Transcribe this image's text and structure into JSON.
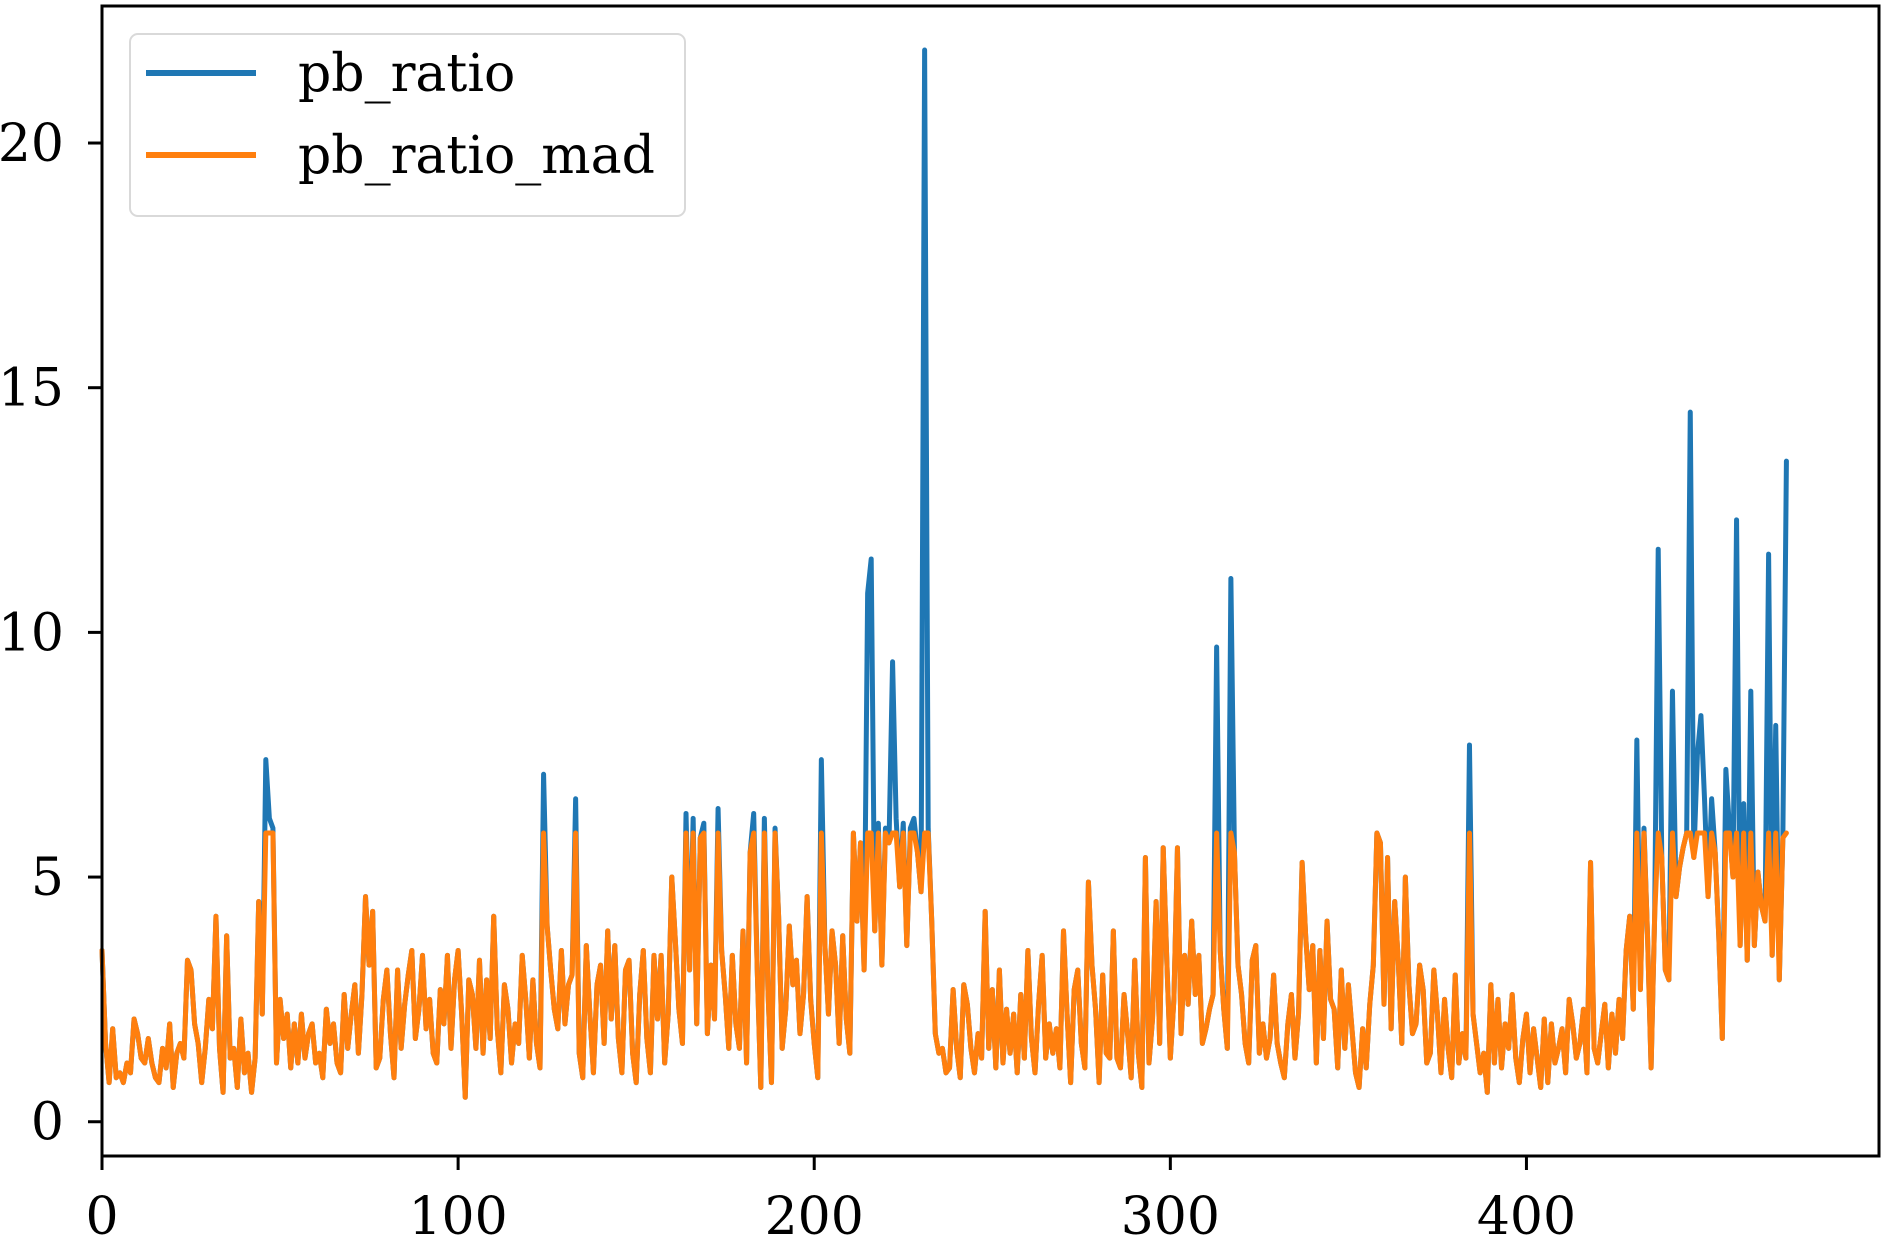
{
  "chart_data": {
    "type": "line",
    "xlim": [
      0,
      499
    ],
    "ylim": [
      -0.7,
      22.8
    ],
    "x_ticks": [
      0,
      100,
      200,
      300,
      400
    ],
    "x_tick_labels": [
      "0",
      "100",
      "200",
      "300",
      "400"
    ],
    "y_ticks": [
      0,
      5,
      10,
      15,
      20
    ],
    "y_tick_labels": [
      "0",
      "5",
      "10",
      "15",
      "20"
    ],
    "grid": false,
    "legend": {
      "position": "upper-left",
      "entries": [
        "pb_ratio",
        "pb_ratio_mad"
      ]
    },
    "mad_cap": 5.9,
    "series": [
      {
        "name": "pb_ratio",
        "color": "#1f77b4",
        "values": [
          3.5,
          1.6,
          0.8,
          1.9,
          0.9,
          1.0,
          0.8,
          1.2,
          1.0,
          2.1,
          1.8,
          1.3,
          1.2,
          1.7,
          1.2,
          0.9,
          0.8,
          1.5,
          1.1,
          2.0,
          0.7,
          1.4,
          1.6,
          1.3,
          3.3,
          3.1,
          2.0,
          1.6,
          0.8,
          1.5,
          2.5,
          1.9,
          4.2,
          1.5,
          0.6,
          3.8,
          1.3,
          1.5,
          0.7,
          2.1,
          1.0,
          1.4,
          0.6,
          1.3,
          4.5,
          2.2,
          7.4,
          6.2,
          6.0,
          1.2,
          2.5,
          1.7,
          2.2,
          1.1,
          2.0,
          1.2,
          2.2,
          1.3,
          1.8,
          2.0,
          1.2,
          1.4,
          0.9,
          2.3,
          1.6,
          2.0,
          1.2,
          1.0,
          2.6,
          1.5,
          2.2,
          2.8,
          1.4,
          2.6,
          4.6,
          3.2,
          4.3,
          1.1,
          1.3,
          2.5,
          3.1,
          1.8,
          0.9,
          3.1,
          1.5,
          2.4,
          3.0,
          3.5,
          1.7,
          2.3,
          3.4,
          1.9,
          2.5,
          1.4,
          1.2,
          2.7,
          2.0,
          3.4,
          1.5,
          2.9,
          3.5,
          2.2,
          0.5,
          2.9,
          2.6,
          1.5,
          3.3,
          1.4,
          2.9,
          1.7,
          4.2,
          1.9,
          1.0,
          2.8,
          2.3,
          1.2,
          2.0,
          1.6,
          3.4,
          2.5,
          1.3,
          2.9,
          1.6,
          1.1,
          7.1,
          4.0,
          3.1,
          2.3,
          1.9,
          3.5,
          2.0,
          2.8,
          3.0,
          6.6,
          1.4,
          0.9,
          3.6,
          2.2,
          1.0,
          2.8,
          3.2,
          1.6,
          3.9,
          2.1,
          3.6,
          1.7,
          1.0,
          3.1,
          3.3,
          1.4,
          0.8,
          2.6,
          3.5,
          1.7,
          1.0,
          3.4,
          2.1,
          3.4,
          1.2,
          2.2,
          5.0,
          3.7,
          2.3,
          1.6,
          6.3,
          3.1,
          6.2,
          2.0,
          5.8,
          6.1,
          1.8,
          3.2,
          2.1,
          6.4,
          3.5,
          2.6,
          1.5,
          3.4,
          2.0,
          1.5,
          3.9,
          1.2,
          5.5,
          6.3,
          3.1,
          0.7,
          6.2,
          2.7,
          0.8,
          6.0,
          4.2,
          1.5,
          2.3,
          4.0,
          2.8,
          3.3,
          1.8,
          2.6,
          4.6,
          2.5,
          1.6,
          0.9,
          7.4,
          3.6,
          2.2,
          3.9,
          3.2,
          1.6,
          3.8,
          2.1,
          1.4,
          5.9,
          4.1,
          5.7,
          3.1,
          10.8,
          11.5,
          3.9,
          6.1,
          3.2,
          6.0,
          5.7,
          9.4,
          6.2,
          4.8,
          6.1,
          3.6,
          6.0,
          6.2,
          5.5,
          4.7,
          21.9,
          6.0,
          4.1,
          1.8,
          1.4,
          1.5,
          1.0,
          1.1,
          2.7,
          1.5,
          0.9,
          2.8,
          2.4,
          1.5,
          1.0,
          1.8,
          1.3,
          4.3,
          1.5,
          2.7,
          1.1,
          3.1,
          1.2,
          2.3,
          1.4,
          2.2,
          1.0,
          2.6,
          1.3,
          3.5,
          1.7,
          1.0,
          2.4,
          3.4,
          1.3,
          2.0,
          1.4,
          1.9,
          1.1,
          3.9,
          2.2,
          0.8,
          2.7,
          3.1,
          1.6,
          1.1,
          4.9,
          3.2,
          2.3,
          0.8,
          3.0,
          1.4,
          1.3,
          3.9,
          1.3,
          1.1,
          2.6,
          1.8,
          0.9,
          3.3,
          1.4,
          0.7,
          5.4,
          1.2,
          2.1,
          4.5,
          1.6,
          5.6,
          3.3,
          1.3,
          2.5,
          5.6,
          1.8,
          3.4,
          2.4,
          4.1,
          2.6,
          3.4,
          1.6,
          1.9,
          2.3,
          2.6,
          9.7,
          3.5,
          2.3,
          1.5,
          11.1,
          5.5,
          3.2,
          2.6,
          1.6,
          1.2,
          3.3,
          3.6,
          1.4,
          2.0,
          1.3,
          1.7,
          3.0,
          1.6,
          1.2,
          0.9,
          2.0,
          2.6,
          1.3,
          2.2,
          5.3,
          3.8,
          2.7,
          3.6,
          1.2,
          3.5,
          1.7,
          4.1,
          2.5,
          2.3,
          1.1,
          3.1,
          1.5,
          2.8,
          1.9,
          1.0,
          0.7,
          1.9,
          1.1,
          2.4,
          3.2,
          5.9,
          5.7,
          2.4,
          5.4,
          1.9,
          4.5,
          3.3,
          1.6,
          5.0,
          2.8,
          1.8,
          2.0,
          3.2,
          2.7,
          1.2,
          1.4,
          3.1,
          2.2,
          1.0,
          2.5,
          1.5,
          0.9,
          3.0,
          1.2,
          1.8,
          1.3,
          7.7,
          2.2,
          1.6,
          1.0,
          1.4,
          0.6,
          2.8,
          1.2,
          2.5,
          1.1,
          2.0,
          1.5,
          2.6,
          1.3,
          0.8,
          1.7,
          2.2,
          1.0,
          1.9,
          1.3,
          0.7,
          2.1,
          0.8,
          2.0,
          1.2,
          1.5,
          1.9,
          1.0,
          2.5,
          2.0,
          1.3,
          1.6,
          2.3,
          1.0,
          5.3,
          1.5,
          1.2,
          1.8,
          2.4,
          1.1,
          2.2,
          1.4,
          2.5,
          1.7,
          3.5,
          4.2,
          2.3,
          7.8,
          2.7,
          6.0,
          3.8,
          1.1,
          4.2,
          11.7,
          5.4,
          3.1,
          2.9,
          8.8,
          4.6,
          5.2,
          5.6,
          5.9,
          14.5,
          5.4,
          7.5,
          8.3,
          6.6,
          4.6,
          6.6,
          5.5,
          3.8,
          1.7,
          7.2,
          6.0,
          5.0,
          12.3,
          3.6,
          6.5,
          3.3,
          8.8,
          3.6,
          5.1,
          4.4,
          4.1,
          11.6,
          3.4,
          8.1,
          2.9,
          5.8,
          13.5
        ]
      },
      {
        "name": "pb_ratio_mad",
        "color": "#ff7f0e"
      }
    ]
  }
}
